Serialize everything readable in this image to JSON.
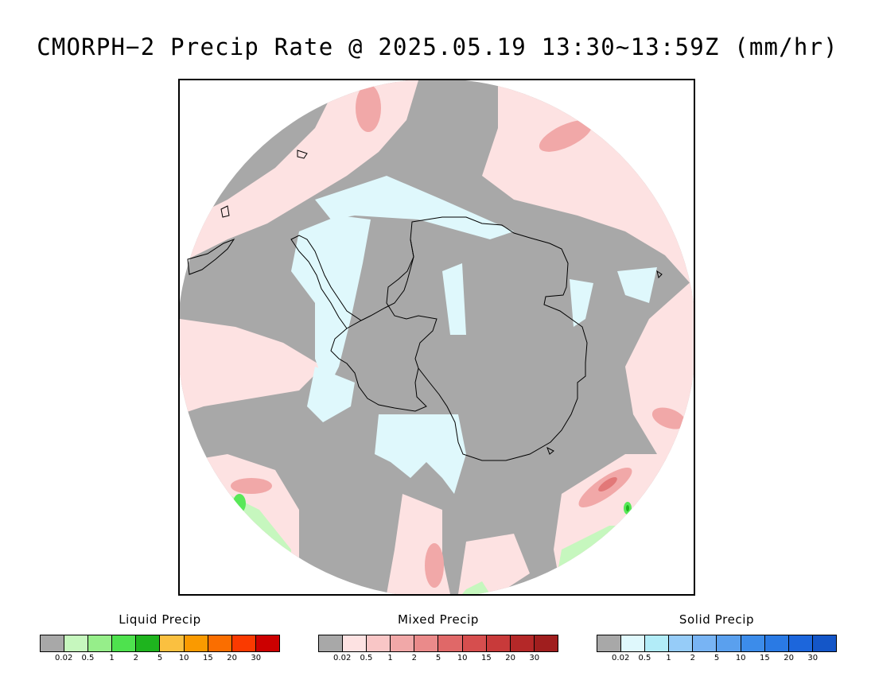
{
  "title": "CMORPH−2 Precip Rate @ 2025.05.19 13:30~13:59Z (mm/hr)",
  "map": {
    "projection": "south polar stereographic",
    "colors": {
      "no_precip": "#a8a8a8",
      "mixed_light": "#fde2e2",
      "mixed_mid": "#f1a8a8",
      "mixed_heavy": "#e27878",
      "solid_light": "#dff8fc",
      "liquid_light": "#c6f7be",
      "liquid_mid": "#58e858",
      "liquid_heavy": "#1eb41e",
      "coastline": "#000000"
    }
  },
  "legends": [
    {
      "title": "Liquid Precip",
      "swatches": [
        "#a8a8a8",
        "#c6f7be",
        "#96ee8a",
        "#4ee24e",
        "#1eb41e",
        "#fac040",
        "#fa9a00",
        "#fa6e00",
        "#fa3a00",
        "#cc0000"
      ],
      "ticks": [
        "0.02",
        "0.5",
        "1",
        "2",
        "5",
        "10",
        "15",
        "20",
        "30"
      ]
    },
    {
      "title": "Mixed Precip",
      "swatches": [
        "#a8a8a8",
        "#fde2e2",
        "#f9c6c6",
        "#f1a8a8",
        "#ea8a8a",
        "#e06868",
        "#d64e4e",
        "#c83a3a",
        "#b42828",
        "#a01e1e"
      ],
      "ticks": [
        "0.02",
        "0.5",
        "1",
        "2",
        "5",
        "10",
        "15",
        "20",
        "30"
      ]
    },
    {
      "title": "Solid Precip",
      "swatches": [
        "#a8a8a8",
        "#dff8fc",
        "#b2ecf8",
        "#96ccf8",
        "#78b4f4",
        "#5aa0ee",
        "#3c8cea",
        "#2a7ae4",
        "#1c66dc",
        "#1456c8"
      ],
      "ticks": [
        "0.02",
        "0.5",
        "1",
        "2",
        "5",
        "10",
        "15",
        "20",
        "30"
      ]
    }
  ]
}
